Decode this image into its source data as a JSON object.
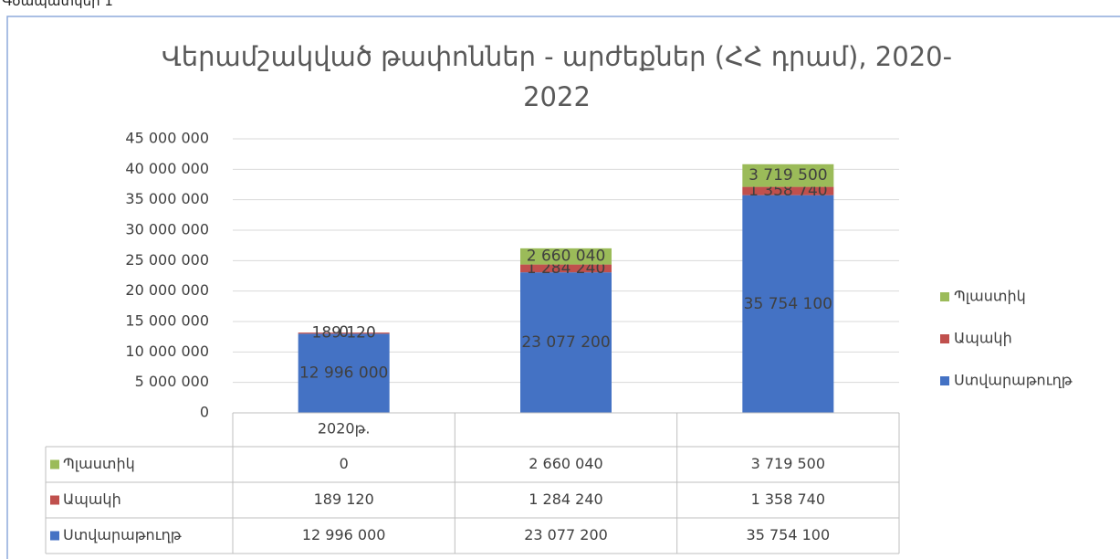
{
  "caption": "Գծապատկեր 1",
  "chart_data": {
    "type": "stacked-bar",
    "title": "Վերամշակված թափոններ - արժեքներ (ՀՀ դրամ), 2020-2022",
    "categories": [
      "2020թ.",
      null,
      null
    ],
    "series": [
      {
        "name": "Ստվարաթուղթ",
        "color": "#4472c4",
        "values": [
          12996000,
          23077200,
          35754100
        ],
        "value_labels": [
          "12 996 000",
          "23 077 200",
          "35 754 100"
        ]
      },
      {
        "name": "Ապակի",
        "color": "#c0504d",
        "values": [
          189120,
          1284240,
          1358740
        ],
        "value_labels": [
          "189 120",
          "1 284 240",
          "1 358 740"
        ]
      },
      {
        "name": "Պլաստիկ",
        "color": "#9bbb59",
        "values": [
          0,
          2660040,
          3719500
        ],
        "value_labels": [
          "0",
          "2 660 040",
          "3 719 500"
        ]
      }
    ],
    "ylim": [
      0,
      45000000
    ],
    "yticks": [
      0,
      {
        "value": 5000000,
        "label": "5 000 000"
      },
      {
        "value": 10000000,
        "label": "10 000 000"
      },
      {
        "value": 15000000,
        "label": "15 000 000"
      },
      {
        "value": 20000000,
        "label": "20 000 000"
      },
      {
        "value": 25000000,
        "label": "25 000 000"
      },
      {
        "value": 30000000,
        "label": "30 000 000"
      },
      {
        "value": 35000000,
        "label": "35 000 000"
      },
      {
        "value": 40000000,
        "label": "40 000 000"
      },
      {
        "value": 45000000,
        "label": "45 000 000"
      }
    ],
    "grid": true,
    "legend": "right",
    "data_table": true
  }
}
